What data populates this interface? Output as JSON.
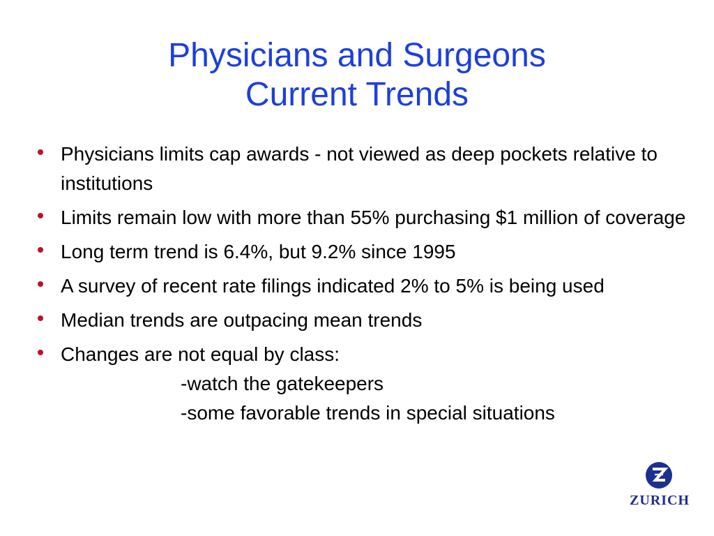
{
  "title": {
    "line1": "Physicians and Surgeons",
    "line2": "Current Trends"
  },
  "bullets": [
    {
      "text": "Physicians limits cap awards - not viewed as deep pockets relative to institutions"
    },
    {
      "text": "Limits remain low with more than 55% purchasing $1 million of coverage"
    },
    {
      "text": "Long term trend is 6.4%, but 9.2% since 1995"
    },
    {
      "text": "A survey of recent rate filings indicated 2% to 5% is being used"
    },
    {
      "text": "Median trends are outpacing mean trends"
    },
    {
      "text": "Changes are not equal by class:",
      "subitems": [
        "-watch the gatekeepers",
        "-some favorable trends in special situations"
      ]
    }
  ],
  "logo": {
    "text": "ZURICH",
    "icon": "zurich-z-icon"
  },
  "colors": {
    "title": "#1c3fdc",
    "bullet": "#c0102a",
    "logo": "#1d2f8f"
  }
}
